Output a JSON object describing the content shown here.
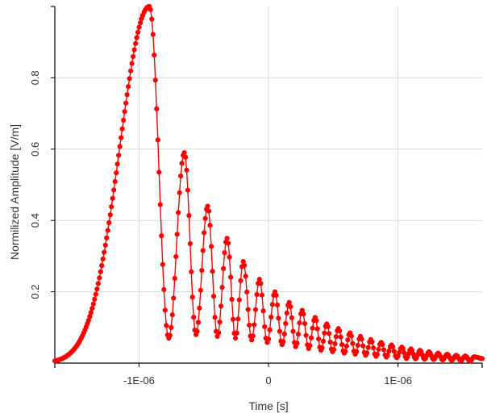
{
  "chart_data": {
    "type": "scatter",
    "title": "",
    "xlabel": "Time [s]",
    "ylabel": "Normilized Amplitude [V/m]",
    "xlim": [
      -1.65e-06,
      1.65e-06
    ],
    "ylim": [
      0,
      1.0
    ],
    "x_ticks": [
      {
        "value": -1e-06,
        "label": "-1E-06"
      },
      {
        "value": 0,
        "label": "0"
      },
      {
        "value": 1e-06,
        "label": "1E-06"
      }
    ],
    "y_ticks": [
      {
        "value": 0.2,
        "label": "0.2"
      },
      {
        "value": 0.4,
        "label": "0.4"
      },
      {
        "value": 0.6,
        "label": "0.6"
      },
      {
        "value": 0.8,
        "label": "0.8"
      }
    ],
    "grid": true,
    "legend": "none",
    "series": [
      {
        "style": "line with circle markers",
        "color": "#ff0000",
        "peaks": [
          {
            "x": -9.2e-07,
            "y": 1.0
          },
          {
            "x": -6.5e-07,
            "y": 0.59
          },
          {
            "x": -4.7e-07,
            "y": 0.44
          },
          {
            "x": -3.2e-07,
            "y": 0.35
          },
          {
            "x": -1.95e-07,
            "y": 0.285
          },
          {
            "x": -7e-08,
            "y": 0.235
          },
          {
            "x": 5e-08,
            "y": 0.2
          },
          {
            "x": 1.6e-07,
            "y": 0.17
          },
          {
            "x": 2.6e-07,
            "y": 0.148
          },
          {
            "x": 3.6e-07,
            "y": 0.128
          },
          {
            "x": 4.5e-07,
            "y": 0.11
          },
          {
            "x": 5.4e-07,
            "y": 0.097
          },
          {
            "x": 6.3e-07,
            "y": 0.085
          },
          {
            "x": 7.1e-07,
            "y": 0.075
          },
          {
            "x": 7.9e-07,
            "y": 0.066
          },
          {
            "x": 8.7e-07,
            "y": 0.058
          },
          {
            "x": 9.5e-07,
            "y": 0.051
          },
          {
            "x": 1.03e-06,
            "y": 0.045
          },
          {
            "x": 1.1e-06,
            "y": 0.04
          },
          {
            "x": 1.17e-06,
            "y": 0.036
          },
          {
            "x": 1.24e-06,
            "y": 0.032
          },
          {
            "x": 1.31e-06,
            "y": 0.028
          },
          {
            "x": 1.38e-06,
            "y": 0.025
          },
          {
            "x": 1.45e-06,
            "y": 0.022
          },
          {
            "x": 1.52e-06,
            "y": 0.02
          },
          {
            "x": 1.59e-06,
            "y": 0.018
          }
        ],
        "troughs": [
          {
            "x": -7.7e-07,
            "y": 0.07
          },
          {
            "x": -5.6e-07,
            "y": 0.08
          },
          {
            "x": -3.95e-07,
            "y": 0.075
          },
          {
            "x": -2.55e-07,
            "y": 0.07
          },
          {
            "x": -1.3e-07,
            "y": 0.065
          },
          {
            "x": -1e-08,
            "y": 0.058
          },
          {
            "x": 1.05e-07,
            "y": 0.052
          },
          {
            "x": 2.1e-07,
            "y": 0.046
          },
          {
            "x": 3.1e-07,
            "y": 0.041
          },
          {
            "x": 4.05e-07,
            "y": 0.036
          },
          {
            "x": 4.95e-07,
            "y": 0.032
          },
          {
            "x": 5.85e-07,
            "y": 0.028
          },
          {
            "x": 6.7e-07,
            "y": 0.025
          },
          {
            "x": 7.5e-07,
            "y": 0.022
          },
          {
            "x": 8.3e-07,
            "y": 0.019
          },
          {
            "x": 9.1e-07,
            "y": 0.017
          },
          {
            "x": 9.9e-07,
            "y": 0.015
          },
          {
            "x": 1.065e-06,
            "y": 0.013
          },
          {
            "x": 1.135e-06,
            "y": 0.012
          },
          {
            "x": 1.205e-06,
            "y": 0.011
          },
          {
            "x": 1.275e-06,
            "y": 0.01
          },
          {
            "x": 1.345e-06,
            "y": 0.009
          },
          {
            "x": 1.415e-06,
            "y": 0.008
          },
          {
            "x": 1.485e-06,
            "y": 0.007
          },
          {
            "x": 1.555e-06,
            "y": 0.006
          }
        ],
        "onset": [
          {
            "x": -1.65e-06,
            "y": 0.0
          },
          {
            "x": -1.4e-06,
            "y": 0.01
          },
          {
            "x": -1.25e-06,
            "y": 0.1
          },
          {
            "x": -1.1e-06,
            "y": 0.45
          }
        ]
      }
    ]
  }
}
